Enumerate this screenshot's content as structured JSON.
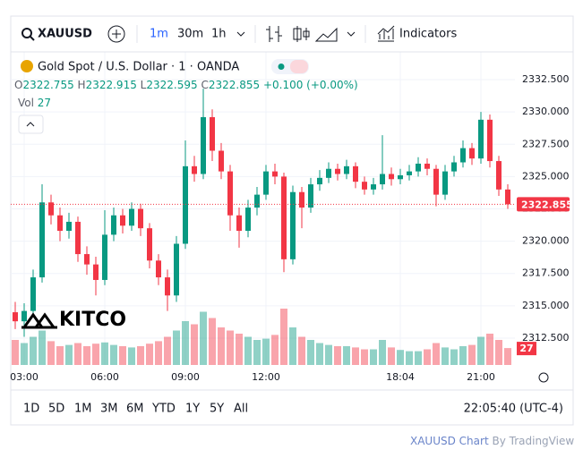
{
  "toolbar": {
    "symbol": "XAUUSD",
    "intervals": [
      "1m",
      "30m",
      "1h"
    ],
    "indicators": "Indicators"
  },
  "legend": {
    "title": "Gold Spot / U.S. Dollar · 1 · OANDA",
    "ohlc": [
      {
        "label": "O",
        "value": "2322.755"
      },
      {
        "label": "H",
        "value": "2322.915"
      },
      {
        "label": "L",
        "value": "2322.595"
      },
      {
        "label": "C",
        "value": "2322.855"
      }
    ],
    "change": "+0.100 (+0.00%)",
    "volume_label": "Vol"
  },
  "watermark": "KITCO",
  "ranges": [
    "1D",
    "5D",
    "1M",
    "3M",
    "6M",
    "YTD",
    "1Y",
    "5Y",
    "All"
  ],
  "clock": "22:05:40 (UTC-4)",
  "footer": {
    "symbol": "XAUUSD Chart",
    "by": "By TradingView"
  },
  "chart_data": {
    "type": "candlestick",
    "categories": [
      null,
      "03:00",
      null,
      null,
      null,
      null,
      null,
      null,
      null,
      null,
      "06:00",
      null,
      null,
      null,
      null,
      null,
      null,
      null,
      null,
      "09:00",
      null,
      null,
      null,
      null,
      null,
      null,
      null,
      null,
      "12:00",
      null,
      null,
      null,
      null,
      null,
      null,
      null,
      null,
      null,
      null,
      null,
      null,
      null,
      null,
      "18:04",
      null,
      null,
      null,
      null,
      null,
      null,
      null,
      null,
      "21:00",
      null,
      null,
      null
    ],
    "open": [
      2314.5,
      2313.8,
      2314.6,
      2317.2,
      2323.0,
      2322.0,
      2320.8,
      2321.5,
      2319.0,
      2318.2,
      2317.0,
      2320.5,
      2322.0,
      2321.2,
      2322.5,
      2321.0,
      2318.5,
      2317.2,
      2315.8,
      2319.8,
      2325.8,
      2325.2,
      2329.6,
      2327.0,
      2325.4,
      2322.0,
      2320.8,
      2322.6,
      2323.6,
      2325.4,
      2325.0,
      2318.6,
      2323.8,
      2322.6,
      2324.4,
      2324.9,
      2325.6,
      2325.2,
      2325.8,
      2324.6,
      2324.0,
      2324.4,
      2325.2,
      2324.8,
      2325.1,
      2325.4,
      2326.0,
      2325.6,
      2323.6,
      2325.4,
      2326.1,
      2327.2,
      2326.4,
      2329.4,
      2326.2,
      2324.0
    ],
    "high": [
      2315.3,
      2315.2,
      2317.8,
      2324.4,
      2323.6,
      2322.6,
      2322.2,
      2321.9,
      2319.6,
      2318.8,
      2322.4,
      2322.6,
      2322.5,
      2323.0,
      2322.9,
      2321.4,
      2319.0,
      2317.8,
      2320.4,
      2327.8,
      2326.6,
      2331.8,
      2330.2,
      2327.6,
      2325.9,
      2322.6,
      2323.2,
      2324.2,
      2325.9,
      2326.0,
      2325.3,
      2324.3,
      2324.2,
      2324.9,
      2325.5,
      2326.1,
      2326.0,
      2326.3,
      2326.1,
      2325.0,
      2324.9,
      2328.2,
      2325.7,
      2325.6,
      2325.9,
      2326.5,
      2326.4,
      2325.9,
      2325.9,
      2326.6,
      2327.8,
      2327.6,
      2330.0,
      2329.8,
      2326.6,
      2324.4
    ],
    "low": [
      2313.2,
      2312.6,
      2314.2,
      2316.8,
      2321.3,
      2320.0,
      2320.2,
      2318.4,
      2317.4,
      2315.8,
      2316.6,
      2320.0,
      2320.6,
      2320.8,
      2320.4,
      2317.9,
      2316.6,
      2314.6,
      2315.3,
      2319.4,
      2324.6,
      2324.8,
      2326.2,
      2324.8,
      2320.8,
      2319.5,
      2320.3,
      2322.0,
      2323.2,
      2324.4,
      2317.6,
      2318.2,
      2321.0,
      2322.2,
      2323.9,
      2324.5,
      2324.7,
      2324.8,
      2324.1,
      2323.6,
      2323.6,
      2324.0,
      2324.3,
      2324.4,
      2324.7,
      2325.0,
      2325.1,
      2322.7,
      2323.2,
      2325.0,
      2325.7,
      2325.9,
      2326.0,
      2325.7,
      2323.5,
      2322.5
    ],
    "close": [
      2313.8,
      2314.6,
      2317.2,
      2323.0,
      2322.0,
      2320.8,
      2321.5,
      2319.0,
      2318.2,
      2317.0,
      2320.5,
      2322.0,
      2321.2,
      2322.5,
      2321.0,
      2318.5,
      2317.2,
      2315.8,
      2319.8,
      2325.8,
      2325.2,
      2329.6,
      2327.0,
      2325.4,
      2322.0,
      2320.8,
      2322.6,
      2323.6,
      2325.4,
      2325.0,
      2318.6,
      2323.8,
      2322.6,
      2324.4,
      2324.9,
      2325.6,
      2325.2,
      2325.8,
      2324.6,
      2324.0,
      2324.4,
      2325.2,
      2324.8,
      2325.1,
      2325.4,
      2326.0,
      2325.6,
      2323.6,
      2325.4,
      2326.1,
      2327.2,
      2326.4,
      2329.4,
      2326.2,
      2324.0,
      2322.855
    ],
    "volume": [
      40,
      35,
      45,
      55,
      38,
      30,
      32,
      35,
      30,
      34,
      36,
      32,
      30,
      28,
      30,
      34,
      38,
      45,
      55,
      70,
      65,
      85,
      75,
      60,
      55,
      50,
      45,
      40,
      42,
      48,
      90,
      60,
      45,
      40,
      35,
      32,
      30,
      30,
      28,
      25,
      25,
      40,
      28,
      24,
      22,
      22,
      25,
      35,
      28,
      25,
      30,
      32,
      45,
      50,
      40,
      27
    ],
    "volume_ylim": [
      0,
      100
    ],
    "up_color": "#089981",
    "down_color": "#f23645",
    "ylim": [
      2310.42,
      2334.65
    ],
    "yticks": [
      {
        "value": 2312.5,
        "label": "2312.500"
      },
      {
        "value": 2315,
        "label": "2315.000"
      },
      {
        "value": 2317.5,
        "label": "2317.500"
      },
      {
        "value": 2320,
        "label": "2320.000"
      },
      {
        "value": 2322.5,
        "label": "2322.500"
      },
      {
        "value": 2325,
        "label": "2325.000"
      },
      {
        "value": 2327.5,
        "label": "2327.500"
      },
      {
        "value": 2330,
        "label": "2330.000"
      },
      {
        "value": 2332.5,
        "label": "2332.500"
      }
    ],
    "grid": true
  }
}
